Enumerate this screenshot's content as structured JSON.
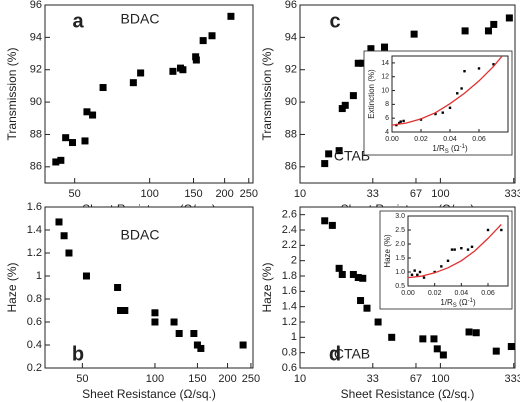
{
  "chart_data": [
    {
      "type": "scatter",
      "panel_label": "a",
      "label": "BDAC",
      "label_color": "#1f4e8c",
      "x_label": "Sheet Resistance (Ω/sq.)",
      "y_label": "Transmission (%)",
      "xlog": true,
      "xlim": [
        38,
        260
      ],
      "xticks": [
        50,
        100,
        150,
        200,
        250
      ],
      "ylim": [
        85,
        96
      ],
      "yticks": [
        86,
        88,
        90,
        92,
        94,
        96
      ],
      "series": [
        {
          "color": "#000000",
          "x": [
            42,
            44,
            46,
            49,
            55,
            56,
            59,
            65,
            86,
            92,
            124,
            133,
            136,
            153,
            154,
            164,
            178,
            212
          ],
          "values": [
            86.3,
            86.4,
            87.8,
            87.5,
            87.6,
            89.4,
            89.2,
            90.9,
            91.2,
            91.8,
            91.9,
            92.1,
            92.0,
            92.8,
            92.6,
            93.8,
            94.1,
            95.3
          ]
        }
      ]
    },
    {
      "type": "scatter",
      "panel_label": "b",
      "label": "BDAC",
      "label_color": "#1f4e8c",
      "x_label": "Sheet Resistance (Ω/sq.)",
      "y_label": "Haze (%)",
      "xlog": true,
      "xlim": [
        35,
        255
      ],
      "xticks": [
        50,
        100,
        150,
        200,
        250
      ],
      "ylim": [
        0.2,
        1.6
      ],
      "yticks": [
        0.2,
        0.4,
        0.6,
        0.8,
        1.0,
        1.2,
        1.4,
        1.6
      ],
      "series": [
        {
          "color": "#000000",
          "x": [
            40,
            42,
            44,
            52,
            70,
            72,
            75,
            100,
            100,
            120,
            126,
            145,
            150,
            155,
            232
          ],
          "values": [
            1.47,
            1.35,
            1.2,
            1.0,
            0.9,
            0.7,
            0.7,
            0.68,
            0.6,
            0.6,
            0.5,
            0.5,
            0.4,
            0.37,
            0.4
          ]
        }
      ]
    },
    {
      "type": "scatter",
      "panel_label": "c",
      "label": "CTAB",
      "label_color": "#c0282a",
      "x_label": "Sheet Resistance (Ω/sq.)",
      "y_label": "Transmission (%)",
      "xlog": true,
      "xlim": [
        10,
        340
      ],
      "xticks": [
        10,
        33,
        67,
        100,
        333
      ],
      "ylim": [
        85,
        96
      ],
      "yticks": [
        86,
        88,
        90,
        92,
        94,
        96
      ],
      "series": [
        {
          "color": "#000000",
          "x": [
            15,
            16,
            19,
            20,
            21,
            24,
            26,
            28,
            32,
            40,
            65,
            150,
            220,
            240,
            310
          ],
          "values": [
            86.2,
            86.8,
            87.0,
            89.6,
            89.8,
            90.4,
            92.4,
            92.4,
            93.3,
            93.4,
            94.2,
            94.4,
            94.4,
            94.8,
            95.2
          ]
        }
      ],
      "inset": {
        "type": "scatter",
        "y_label": "Extinction (%)",
        "x_label_parts": [
          "1/R",
          "S",
          " (Ω",
          "-1",
          ")"
        ],
        "xlim": [
          0,
          0.08
        ],
        "xticks": [
          {
            "value": 0,
            "label": "0.00"
          },
          {
            "value": 0.02,
            "label": "0.02"
          },
          {
            "value": 0.04,
            "label": "0.04"
          },
          {
            "value": 0.06,
            "label": "0.06"
          }
        ],
        "ylim": [
          4,
          15
        ],
        "yticks": [
          4,
          6,
          8,
          10,
          12,
          14
        ],
        "series": [
          {
            "color": "#000000",
            "x": [
              0.003,
              0.005,
              0.006,
              0.008,
              0.02,
              0.03,
              0.035,
              0.04,
              0.045,
              0.048,
              0.05,
              0.06,
              0.07
            ],
            "values": [
              5.0,
              5.3,
              5.5,
              5.6,
              5.8,
              6.6,
              6.8,
              7.5,
              9.6,
              10.3,
              12.8,
              13.2,
              13.8
            ]
          },
          {
            "type": "line",
            "color": "#e03030",
            "x": [
              0,
              0.01,
              0.02,
              0.03,
              0.04,
              0.05,
              0.06,
              0.07,
              0.076
            ],
            "values": [
              5.0,
              5.3,
              5.9,
              6.8,
              8.1,
              9.6,
              11.4,
              13.5,
              15.0
            ]
          }
        ]
      }
    },
    {
      "type": "scatter",
      "panel_label": "d",
      "label": "CTAB",
      "label_color": "#c0282a",
      "x_label": "Sheet Resistance (Ω/sq.)",
      "y_label": "Haze (%)",
      "xlog": true,
      "xlim": [
        10,
        340
      ],
      "xticks": [
        10,
        33,
        67,
        100,
        333
      ],
      "ylim": [
        0.6,
        2.7
      ],
      "yticks": [
        0.6,
        0.8,
        1.0,
        1.2,
        1.4,
        1.6,
        1.8,
        2.0,
        2.2,
        2.4,
        2.6
      ],
      "series": [
        {
          "color": "#000000",
          "x": [
            15,
            17,
            19,
            20,
            24,
            26,
            28,
            27,
            30,
            36,
            45,
            75,
            90,
            95,
            105,
            160,
            180,
            250,
            320
          ],
          "values": [
            2.52,
            2.46,
            1.9,
            1.82,
            1.82,
            1.78,
            1.77,
            1.48,
            1.38,
            1.2,
            1.0,
            0.98,
            0.98,
            0.85,
            0.77,
            1.07,
            1.06,
            0.82,
            0.88
          ]
        }
      ],
      "inset": {
        "type": "scatter",
        "y_label": "Haze (%)",
        "x_label_parts": [
          "1/R",
          "S",
          " (Ω",
          "-1",
          ")"
        ],
        "xlim": [
          0,
          0.075
        ],
        "xticks": [
          {
            "value": 0,
            "label": "0.00"
          },
          {
            "value": 0.02,
            "label": "0.02"
          },
          {
            "value": 0.04,
            "label": "0.04"
          },
          {
            "value": 0.06,
            "label": "0.06"
          }
        ],
        "ylim": [
          0.5,
          3.0
        ],
        "yticks": [
          {
            "value": 0.5,
            "label": "0.5"
          },
          {
            "value": 1.0,
            "label": "1.0"
          },
          {
            "value": 1.5,
            "label": "1.5"
          },
          {
            "value": 2.0,
            "label": "2.0"
          },
          {
            "value": 2.5,
            "label": "2.5"
          },
          {
            "value": 3.0,
            "label": "3.0"
          }
        ],
        "series": [
          {
            "color": "#000000",
            "x": [
              0.003,
              0.005,
              0.007,
              0.009,
              0.012,
              0.02,
              0.025,
              0.03,
              0.033,
              0.035,
              0.04,
              0.045,
              0.048,
              0.06,
              0.07
            ],
            "values": [
              0.9,
              1.05,
              0.9,
              1.0,
              0.8,
              1.0,
              1.2,
              1.4,
              1.8,
              1.8,
              1.85,
              1.8,
              1.9,
              2.5,
              2.5
            ]
          },
          {
            "type": "line",
            "color": "#e03030",
            "x": [
              0,
              0.01,
              0.02,
              0.03,
              0.04,
              0.05,
              0.06,
              0.07
            ],
            "values": [
              0.8,
              0.85,
              0.97,
              1.15,
              1.4,
              1.75,
              2.2,
              2.7
            ]
          }
        ]
      }
    }
  ]
}
